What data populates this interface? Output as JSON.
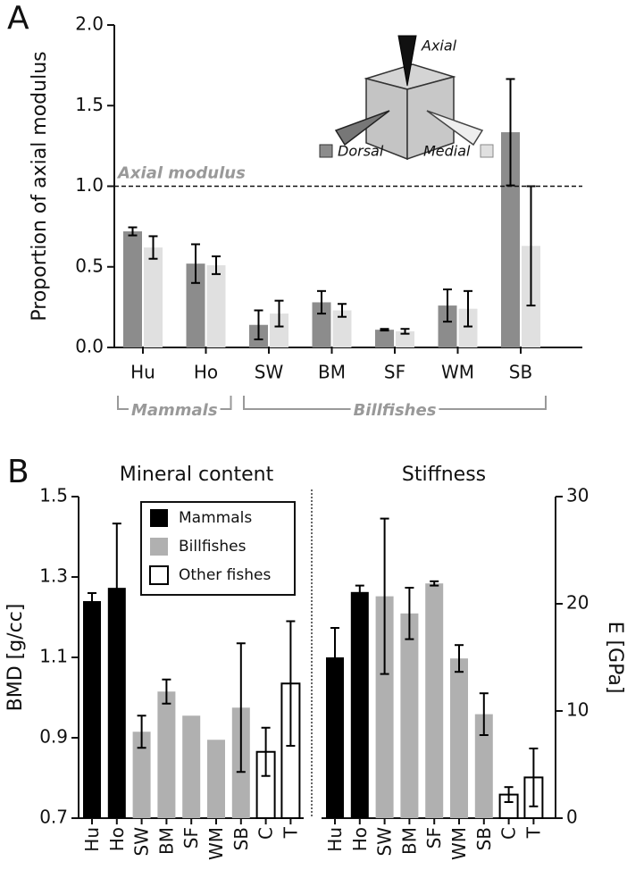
{
  "chart_data": [
    {
      "type": "bar",
      "panel": "A",
      "ylabel": "Proportion of axial modulus",
      "categories": [
        "Hu",
        "Ho",
        "SW",
        "BM",
        "SF",
        "WM",
        "SB"
      ],
      "series": [
        {
          "name": "Dorsal",
          "color": "#8c8c8c",
          "values": [
            0.72,
            0.52,
            0.14,
            0.28,
            0.11,
            0.26,
            1.335
          ],
          "errors": [
            0.025,
            0.12,
            0.09,
            0.07,
            0.005,
            0.1,
            0.33
          ]
        },
        {
          "name": "Medial",
          "color": "#e0e0e0",
          "values": [
            0.62,
            0.51,
            0.21,
            0.23,
            0.1,
            0.24,
            0.63
          ],
          "errors": [
            0.07,
            0.055,
            0.08,
            0.04,
            0.015,
            0.11,
            0.37
          ]
        }
      ],
      "ylim": [
        0,
        2
      ],
      "yticks": [
        {
          "value": 0,
          "label": "0.0"
        },
        {
          "value": 0.5,
          "label": "0.5"
        },
        {
          "value": 1,
          "label": "1.0"
        },
        {
          "value": 1.5,
          "label": "1.5"
        },
        {
          "value": 2,
          "label": "2.0"
        }
      ],
      "reference_line": {
        "value": 1,
        "label": "Axial modulus"
      },
      "annotation": "Axial",
      "group_labels": [
        "Mammals",
        "Billfishes"
      ]
    },
    {
      "type": "bar",
      "panel": "B",
      "title": "Mineral content",
      "ylabel": "BMD [g/cc]",
      "categories": [
        "Hu",
        "Ho",
        "SW",
        "BM",
        "SF",
        "WM",
        "SB",
        "C",
        "T"
      ],
      "values": [
        1.24,
        1.273,
        0.915,
        1.015,
        0.955,
        0.895,
        0.975,
        0.865,
        1.035
      ],
      "errors": [
        0.02,
        0.16,
        0.04,
        0.03,
        0,
        0,
        0.16,
        0.06,
        0.155
      ],
      "colors": [
        "#000000",
        "#000000",
        "#b0b0b0",
        "#b0b0b0",
        "#b0b0b0",
        "#b0b0b0",
        "#b0b0b0",
        "#ffffff",
        "#ffffff"
      ],
      "ylim": [
        0.7,
        1.5
      ],
      "yticks": [
        0.7,
        0.9,
        1.1,
        1.3,
        1.5
      ],
      "legend": [
        {
          "name": "Mammals",
          "color": "#000000"
        },
        {
          "name": "Billfishes",
          "color": "#b0b0b0"
        },
        {
          "name": "Other fishes",
          "color": "#ffffff"
        }
      ]
    },
    {
      "type": "bar",
      "title": "Stiffness",
      "ylabel": "E [GPa]",
      "categories": [
        "Hu",
        "Ho",
        "SW",
        "BM",
        "SF",
        "WM",
        "SB",
        "C",
        "T"
      ],
      "values": [
        15.0,
        21.1,
        20.7,
        19.1,
        21.9,
        14.9,
        9.7,
        2.2,
        3.8
      ],
      "errors": [
        2.75,
        0.6,
        7.25,
        2.4,
        0.2,
        1.25,
        1.95,
        0.7,
        2.7
      ],
      "colors": [
        "#000000",
        "#000000",
        "#b0b0b0",
        "#b0b0b0",
        "#b0b0b0",
        "#b0b0b0",
        "#b0b0b0",
        "#ffffff",
        "#ffffff"
      ],
      "ylim": [
        0,
        30
      ],
      "yticks": [
        0,
        10,
        20,
        30
      ],
      "axis_side": "right"
    }
  ]
}
